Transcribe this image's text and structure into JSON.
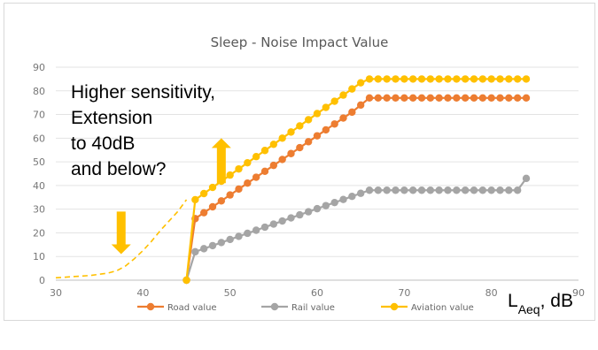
{
  "chart_data": {
    "type": "line",
    "title": "Sleep - Noise Impact Value",
    "xlabel": "L",
    "xlabel_sub": "Aeq",
    "xlabel_unit": ", dB",
    "xlim": [
      30,
      90
    ],
    "ylim": [
      0,
      90
    ],
    "xticks": [
      "30",
      "40",
      "50",
      "60",
      "70",
      "80",
      "90"
    ],
    "yticks": [
      "0",
      "10",
      "20",
      "30",
      "40",
      "50",
      "60",
      "70",
      "80",
      "90"
    ],
    "grid": true,
    "legend_position": "bottom",
    "series": [
      {
        "name": "Road value",
        "color": "#ed7d31",
        "x": [
          45,
          46,
          47,
          48,
          49,
          50,
          51,
          52,
          53,
          54,
          55,
          56,
          57,
          58,
          59,
          60,
          61,
          62,
          63,
          64,
          65,
          66,
          67,
          68,
          69,
          70,
          71,
          72,
          73,
          74,
          75,
          76,
          77,
          78,
          79,
          80,
          81,
          82,
          83,
          84
        ],
        "y": [
          0,
          26,
          28.5,
          31,
          33.5,
          36,
          38.5,
          41,
          43.5,
          46,
          48.5,
          51,
          53.5,
          56,
          58.5,
          61,
          63.5,
          66,
          68.5,
          71,
          74,
          77,
          77,
          77,
          77,
          77,
          77,
          77,
          77,
          77,
          77,
          77,
          77,
          77,
          77,
          77,
          77,
          77,
          77,
          77
        ]
      },
      {
        "name": "Rail value",
        "color": "#a5a5a5",
        "x": [
          45,
          46,
          47,
          48,
          49,
          50,
          51,
          52,
          53,
          54,
          55,
          56,
          57,
          58,
          59,
          60,
          61,
          62,
          63,
          64,
          65,
          66,
          67,
          68,
          69,
          70,
          71,
          72,
          73,
          74,
          75,
          76,
          77,
          78,
          79,
          80,
          81,
          82,
          83,
          84
        ],
        "y": [
          0,
          12,
          13.3,
          14.6,
          15.9,
          17.2,
          18.5,
          19.8,
          21.1,
          22.4,
          23.7,
          25,
          26.3,
          27.6,
          28.9,
          30.2,
          31.5,
          32.8,
          34.1,
          35.4,
          36.7,
          38,
          38,
          38,
          38,
          38,
          38,
          38,
          38,
          38,
          38,
          38,
          38,
          38,
          38,
          38,
          38,
          38,
          38,
          43
        ]
      },
      {
        "name": "Aviation value",
        "color": "#ffc000",
        "x": [
          45,
          46,
          47,
          48,
          49,
          50,
          51,
          52,
          53,
          54,
          55,
          56,
          57,
          58,
          59,
          60,
          61,
          62,
          63,
          64,
          65,
          66,
          67,
          68,
          69,
          70,
          71,
          72,
          73,
          74,
          75,
          76,
          77,
          78,
          79,
          80,
          81,
          82,
          83,
          84
        ],
        "y": [
          0,
          34,
          36.6,
          39.2,
          41.8,
          44.4,
          47,
          49.6,
          52.2,
          54.8,
          57.4,
          60,
          62.6,
          65.2,
          67.8,
          70.4,
          73,
          75.6,
          78.2,
          80.8,
          83.4,
          85,
          85,
          85,
          85,
          85,
          85,
          85,
          85,
          85,
          85,
          85,
          85,
          85,
          85,
          85,
          85,
          85,
          85,
          85
        ]
      }
    ],
    "extension_curve": {
      "color": "#ffc000",
      "style": "dashed",
      "x": [
        30,
        32,
        34,
        36,
        37,
        38,
        39,
        40,
        41,
        42,
        43,
        44,
        45
      ],
      "y": [
        1,
        1.5,
        2,
        3,
        4,
        6,
        9,
        12.5,
        16.5,
        21,
        25,
        29,
        34
      ]
    },
    "annotations": [
      {
        "text": "Higher sensitivity,"
      },
      {
        "text": "Extension"
      },
      {
        "text": "to 40dB"
      },
      {
        "text": "and below?"
      }
    ],
    "arrows": [
      {
        "direction": "up",
        "color": "#ffc000",
        "x": 49,
        "y_from": 60,
        "y_to": 41
      },
      {
        "direction": "down",
        "color": "#ffc000",
        "x": 37.5,
        "y_from": 29,
        "y_to": 11
      }
    ]
  }
}
